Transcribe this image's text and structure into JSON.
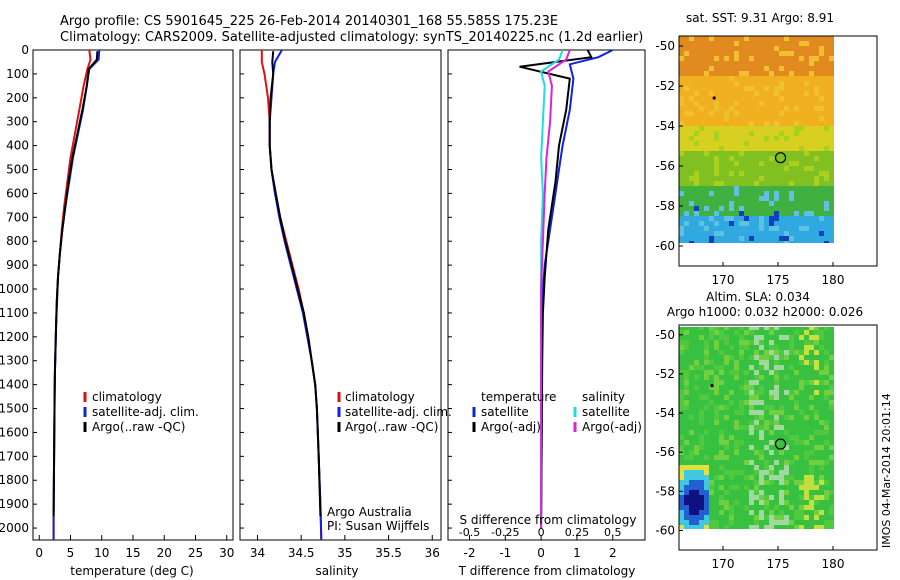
{
  "header": {
    "line1": "Argo profile: CS 5901645_225 26-Feb-2014 20140301_168 55.585S 175.23E",
    "line2": "Climatology: CARS2009. Satellite-adjusted climatology: synTS_20140225.nc (1.2d earlier)"
  },
  "footer_stamp": "IMOS 04-Mar-2014 20:01:14",
  "colors": {
    "climatology": "#dd1111",
    "satellite": "#1122dd",
    "argo": "#000000",
    "sal_satellite": "#22dddd",
    "sal_argo": "#dd22dd"
  },
  "chart_data": [
    {
      "type": "line",
      "panel": "temperature",
      "xlabel": "temperature (deg C)",
      "ylabel": "",
      "xlim": [
        -1,
        31
      ],
      "ylim": [
        2050,
        0
      ],
      "xticks": [
        "0",
        "5",
        "10",
        "15",
        "20",
        "25",
        "30"
      ],
      "xtick_values": [
        0,
        5,
        10,
        15,
        20,
        25,
        30
      ],
      "yticks": [
        "0",
        "100",
        "200",
        "300",
        "400",
        "500",
        "600",
        "700",
        "800",
        "900",
        "1000",
        "1100",
        "1200",
        "1300",
        "1400",
        "1500",
        "1600",
        "1700",
        "1800",
        "1900",
        "2000"
      ],
      "ytick_values": [
        0,
        100,
        200,
        300,
        400,
        500,
        600,
        700,
        800,
        900,
        1000,
        1100,
        1200,
        1300,
        1400,
        1500,
        1600,
        1700,
        1800,
        1900,
        2000
      ],
      "legend": [
        "climatology",
        "satellite-adj. clim.",
        "Argo(..raw -QC)"
      ],
      "series": [
        {
          "name": "climatology",
          "color_key": "climatology",
          "x": [
            8.0,
            8.2,
            7.7,
            7.1,
            6.4,
            5.7,
            5.0,
            4.5,
            4.0,
            3.6,
            3.3,
            3.0,
            2.85,
            2.7,
            2.6,
            2.5,
            2.45,
            2.4,
            2.35,
            2.3,
            2.3
          ],
          "y": [
            0,
            40,
            80,
            150,
            250,
            350,
            450,
            550,
            650,
            750,
            850,
            950,
            1050,
            1150,
            1250,
            1350,
            1450,
            1600,
            1800,
            1950,
            2050
          ]
        },
        {
          "name": "satellite-adj. clim.",
          "color_key": "satellite",
          "x": [
            9.6,
            9.5,
            8.0,
            7.6,
            7.0,
            6.2,
            5.4,
            4.8,
            4.2,
            3.7,
            3.3,
            3.0,
            2.8,
            2.7,
            2.6,
            2.5,
            2.45,
            2.4,
            2.35,
            2.3,
            2.3
          ],
          "y": [
            0,
            40,
            80,
            150,
            250,
            350,
            450,
            550,
            650,
            750,
            850,
            950,
            1050,
            1150,
            1250,
            1350,
            1450,
            1600,
            1800,
            1950,
            2050
          ]
        },
        {
          "name": "Argo(..raw -QC)",
          "color_key": "argo",
          "x": [
            9.3,
            9.2,
            7.9,
            7.6,
            6.9,
            6.1,
            5.3,
            4.7,
            4.2,
            3.7,
            3.3,
            3.0,
            2.8,
            2.7,
            2.6,
            2.5,
            2.45,
            2.4,
            2.35,
            2.3
          ],
          "y": [
            5,
            40,
            80,
            150,
            250,
            350,
            450,
            550,
            650,
            750,
            850,
            950,
            1050,
            1150,
            1250,
            1350,
            1450,
            1600,
            1800,
            1950
          ]
        }
      ]
    },
    {
      "type": "line",
      "panel": "salinity",
      "xlabel": "salinity",
      "ylabel": "",
      "xlim": [
        33.8,
        36.1
      ],
      "ylim": [
        2050,
        0
      ],
      "xticks": [
        "34",
        "34.5",
        "35",
        "35.5",
        "36"
      ],
      "xtick_values": [
        34,
        34.5,
        35,
        35.5,
        36
      ],
      "legend": [
        "climatology",
        "satellite-adj. clim.",
        "Argo(..raw -QC)"
      ],
      "annotation": [
        "Argo Australia",
        "PI: Susan Wijffels"
      ],
      "series": [
        {
          "name": "climatology",
          "color_key": "climatology",
          "x": [
            34.05,
            34.05,
            34.08,
            34.12,
            34.14,
            34.14,
            34.16,
            34.2,
            34.26,
            34.33,
            34.4,
            34.47,
            34.53,
            34.58,
            34.62,
            34.66,
            34.68,
            34.7,
            34.72,
            34.73
          ],
          "y": [
            0,
            50,
            100,
            200,
            300,
            400,
            500,
            600,
            700,
            800,
            900,
            1000,
            1100,
            1200,
            1300,
            1400,
            1500,
            1700,
            1900,
            2050
          ]
        },
        {
          "name": "satellite-adj. clim.",
          "color_key": "satellite",
          "x": [
            34.28,
            34.2,
            34.18,
            34.16,
            34.14,
            34.14,
            34.16,
            34.2,
            34.25,
            34.31,
            34.38,
            34.45,
            34.52,
            34.57,
            34.62,
            34.66,
            34.68,
            34.7,
            34.72,
            34.73
          ],
          "y": [
            0,
            50,
            100,
            200,
            300,
            400,
            500,
            600,
            700,
            800,
            900,
            1000,
            1100,
            1200,
            1300,
            1400,
            1500,
            1700,
            1900,
            2050
          ]
        },
        {
          "name": "Argo(..raw -QC)",
          "color_key": "argo",
          "x": [
            34.18,
            34.17,
            34.18,
            34.15,
            34.14,
            34.14,
            34.16,
            34.21,
            34.26,
            34.32,
            34.39,
            34.46,
            34.53,
            34.58,
            34.62,
            34.66,
            34.68,
            34.7,
            34.72
          ],
          "y": [
            5,
            50,
            100,
            200,
            300,
            400,
            500,
            600,
            700,
            800,
            900,
            1000,
            1100,
            1200,
            1300,
            1400,
            1500,
            1700,
            1950
          ]
        }
      ]
    },
    {
      "type": "line",
      "panel": "difference",
      "xlabel": "T difference from climatology",
      "top_xlabel": "S difference from climatology",
      "xlim": [
        -2.6,
        2.9
      ],
      "ylim": [
        2050,
        0
      ],
      "xticks": [
        "-2",
        "-1",
        "0",
        "1",
        "2"
      ],
      "xtick_values": [
        -2,
        -1,
        0,
        1,
        2
      ],
      "top_xticks": [
        "-0.5",
        "-0.25",
        "0",
        "0.25",
        "0.5"
      ],
      "top_xtick_values": [
        -2,
        -1,
        0,
        1,
        2
      ],
      "legend_temperature": [
        "temperature",
        "satellite",
        "Argo(-adj)"
      ],
      "legend_salinity": [
        "salinity",
        "satellite",
        "Argo(-adj)"
      ],
      "series": [
        {
          "name": "satellite",
          "variable": "temperature",
          "color_key": "satellite",
          "x": [
            2.0,
            1.6,
            0.8,
            0.9,
            0.8,
            0.6,
            0.5,
            0.4,
            0.3,
            0.2,
            0.1,
            0.05,
            0.03,
            0.02,
            0.01,
            0.0
          ],
          "y": [
            0,
            30,
            60,
            120,
            250,
            400,
            500,
            600,
            700,
            800,
            900,
            1000,
            1200,
            1500,
            1800,
            2000
          ]
        },
        {
          "name": "Argo(-adj)",
          "variable": "temperature",
          "color_key": "argo",
          "x": [
            1.3,
            1.4,
            -0.6,
            0.8,
            0.7,
            0.5,
            0.4,
            0.3,
            0.2,
            0.15,
            0.1,
            0.05,
            0.03,
            0.02,
            0.0
          ],
          "y": [
            0,
            30,
            70,
            120,
            250,
            400,
            550,
            650,
            750,
            850,
            950,
            1100,
            1300,
            1600,
            1950
          ]
        },
        {
          "name": "satellite",
          "variable": "salinity",
          "color_key": "sal_satellite",
          "x": [
            0.6,
            0.5,
            0.0,
            0.1,
            0.05,
            0.0,
            0.05,
            0.0,
            0.0,
            0.0,
            0.0,
            0.0
          ],
          "y": [
            0,
            40,
            90,
            150,
            300,
            450,
            600,
            800,
            1000,
            1300,
            1700,
            2000
          ]
        },
        {
          "name": "Argo(-adj)",
          "variable": "salinity",
          "color_key": "sal_argo",
          "x": [
            0.8,
            0.7,
            0.2,
            0.3,
            0.25,
            0.15,
            0.1,
            0.05,
            0.0,
            0.0,
            0.0,
            0.0
          ],
          "y": [
            0,
            40,
            90,
            150,
            300,
            450,
            600,
            800,
            1000,
            1300,
            1700,
            2000
          ]
        }
      ]
    },
    {
      "type": "heatmap",
      "panel": "sst_map",
      "title": "sat. SST: 9.31  Argo: 8.91",
      "xlim": [
        166,
        184
      ],
      "ylim": [
        -61,
        -49.5
      ],
      "xticks": [
        "170",
        "175",
        "180"
      ],
      "xtick_values": [
        170,
        175,
        180
      ],
      "yticks": [
        "-50",
        "-52",
        "-54",
        "-56",
        "-58",
        "-60"
      ],
      "ytick_values": [
        -50,
        -52,
        -54,
        -56,
        -58,
        -60
      ],
      "argo_position": {
        "lon": 175.23,
        "lat": -55.585
      },
      "dot": {
        "lon": 169.2,
        "lat": -52.6
      },
      "color_bands": [
        {
          "lat_from": -49.5,
          "lat_to": -51.5,
          "color": "#e08a20"
        },
        {
          "lat_from": -51.5,
          "lat_to": -54.0,
          "color": "#f0b020"
        },
        {
          "lat_from": -54.0,
          "lat_to": -55.2,
          "color": "#d8d020"
        },
        {
          "lat_from": -55.2,
          "lat_to": -57.0,
          "color": "#80c020"
        },
        {
          "lat_from": -57.0,
          "lat_to": -58.5,
          "color": "#40b040"
        },
        {
          "lat_from": -58.5,
          "lat_to": -60.0,
          "color": "#30a8e0"
        }
      ]
    },
    {
      "type": "heatmap",
      "panel": "sla_map",
      "title": "Altim. SLA: 0.034",
      "subtitle": "Argo h1000: 0.032  h2000: 0.026",
      "xlim": [
        166,
        184
      ],
      "ylim": [
        -61,
        -49.5
      ],
      "xticks": [
        "170",
        "175",
        "180"
      ],
      "xtick_values": [
        170,
        175,
        180
      ],
      "yticks": [
        "-50",
        "-52",
        "-54",
        "-56",
        "-58",
        "-60"
      ],
      "ytick_values": [
        -50,
        -52,
        -54,
        -56,
        -58,
        -60
      ],
      "argo_position": {
        "lon": 175.23,
        "lat": -55.585
      },
      "dot": {
        "lon": 169.0,
        "lat": -52.6
      }
    }
  ]
}
